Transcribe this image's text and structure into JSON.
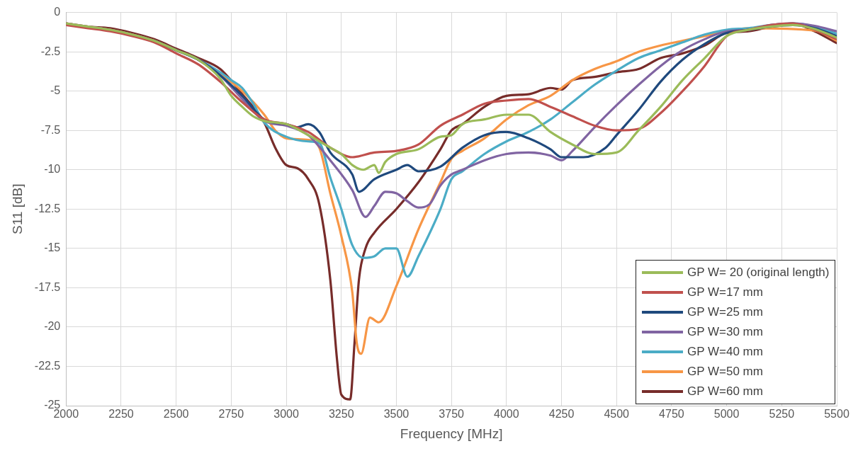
{
  "chart_data": {
    "type": "line",
    "xlabel": "Frequency [MHz]",
    "ylabel": "S11 [dB]",
    "xlim": [
      2000,
      5500
    ],
    "xticks": [
      2000,
      2250,
      2500,
      2750,
      3000,
      3250,
      3500,
      3750,
      4000,
      4250,
      4500,
      4750,
      5000,
      5250,
      5500
    ],
    "ylim": [
      -25,
      0
    ],
    "yticks": [
      -25,
      -22.5,
      -20,
      -17.5,
      -15,
      -12.5,
      -10,
      -7.5,
      -5,
      -2.5,
      0
    ],
    "grid": true,
    "legend": "bottom right",
    "marker": "none",
    "line_style": "solid",
    "series": [
      {
        "name": "GP W= 20 (original length)",
        "color": "#9bbb59",
        "x": [
          2000,
          2100,
          2200,
          2300,
          2400,
          2500,
          2600,
          2700,
          2750,
          2800,
          2850,
          2900,
          3000,
          3100,
          3200,
          3250,
          3300,
          3350,
          3400,
          3420,
          3450,
          3500,
          3600,
          3700,
          3750,
          3800,
          3900,
          4000,
          4100,
          4200,
          4300,
          4400,
          4500,
          4600,
          4700,
          4800,
          4900,
          5000,
          5100,
          5200,
          5300,
          5400,
          5500
        ],
        "values": [
          -0.7,
          -0.9,
          -1.1,
          -1.4,
          -1.8,
          -2.4,
          -3.0,
          -4.2,
          -5.3,
          -6.0,
          -6.6,
          -6.9,
          -7.1,
          -7.8,
          -8.6,
          -9.0,
          -9.7,
          -10.0,
          -9.7,
          -10.2,
          -9.5,
          -9.0,
          -8.7,
          -7.9,
          -7.8,
          -7.1,
          -6.8,
          -6.5,
          -6.5,
          -7.6,
          -8.4,
          -9.0,
          -8.9,
          -7.5,
          -6.0,
          -4.3,
          -2.9,
          -1.5,
          -1.1,
          -0.9,
          -0.8,
          -1.05,
          -1.6
        ]
      },
      {
        "name": "GP W=17 mm",
        "color": "#c0504d",
        "x": [
          2000,
          2100,
          2200,
          2300,
          2400,
          2500,
          2600,
          2700,
          2800,
          2900,
          3000,
          3100,
          3200,
          3300,
          3400,
          3500,
          3600,
          3700,
          3800,
          3900,
          4000,
          4100,
          4200,
          4300,
          4400,
          4500,
          4600,
          4700,
          4800,
          4900,
          5000,
          5100,
          5200,
          5300,
          5400,
          5500
        ],
        "values": [
          -0.8,
          -1.0,
          -1.2,
          -1.5,
          -1.9,
          -2.6,
          -3.3,
          -4.4,
          -5.7,
          -6.8,
          -7.1,
          -7.6,
          -8.6,
          -9.2,
          -8.9,
          -8.8,
          -8.4,
          -7.2,
          -6.5,
          -5.8,
          -5.6,
          -5.5,
          -6.0,
          -6.6,
          -7.2,
          -7.5,
          -7.4,
          -6.4,
          -5.0,
          -3.4,
          -1.5,
          -1.1,
          -0.8,
          -0.7,
          -1.1,
          -1.7
        ]
      },
      {
        "name": "GP W=25 mm",
        "color": "#1f497d",
        "x": [
          2400,
          2500,
          2600,
          2700,
          2800,
          2900,
          3000,
          3050,
          3100,
          3150,
          3200,
          3300,
          3330,
          3400,
          3500,
          3550,
          3600,
          3700,
          3800,
          3900,
          4000,
          4100,
          4200,
          4250,
          4350,
          4450,
          4500,
          4600,
          4700,
          4800,
          4900,
          5000,
          5100,
          5200,
          5300,
          5400,
          5500
        ],
        "values": [
          -1.8,
          -2.4,
          -3.0,
          -4.0,
          -5.3,
          -6.8,
          -7.1,
          -7.3,
          -7.1,
          -7.6,
          -8.9,
          -10.3,
          -11.4,
          -10.6,
          -10.0,
          -9.7,
          -10.1,
          -9.8,
          -8.6,
          -7.8,
          -7.6,
          -8.0,
          -8.7,
          -9.2,
          -9.2,
          -8.6,
          -7.8,
          -6.2,
          -4.4,
          -3.0,
          -2.0,
          -1.3,
          -1.1,
          -0.9,
          -0.8,
          -1.0,
          -1.5
        ]
      },
      {
        "name": "GP W=30 mm",
        "color": "#8064a2",
        "x": [
          2000,
          2100,
          2200,
          2300,
          2400,
          2500,
          2600,
          2700,
          2800,
          2900,
          3000,
          3100,
          3200,
          3300,
          3360,
          3400,
          3450,
          3500,
          3550,
          3600,
          3650,
          3700,
          3750,
          3800,
          3900,
          4000,
          4100,
          4200,
          4250,
          4300,
          4400,
          4500,
          4600,
          4700,
          4800,
          4900,
          5000,
          5100,
          5200,
          5300,
          5400,
          5500
        ],
        "values": [
          -0.7,
          -0.9,
          -1.1,
          -1.4,
          -1.8,
          -2.4,
          -3.0,
          -4.0,
          -5.5,
          -6.9,
          -7.2,
          -7.8,
          -9.4,
          -11.3,
          -13.0,
          -12.3,
          -11.4,
          -11.5,
          -12.0,
          -12.4,
          -12.2,
          -11.0,
          -10.3,
          -10.0,
          -9.4,
          -9.0,
          -8.9,
          -9.1,
          -9.4,
          -8.8,
          -7.3,
          -5.9,
          -4.6,
          -3.4,
          -2.4,
          -1.7,
          -1.2,
          -1.1,
          -0.8,
          -0.7,
          -0.85,
          -1.2
        ]
      },
      {
        "name": "GP W=40 mm",
        "color": "#4bacc6",
        "x": [
          2400,
          2500,
          2600,
          2700,
          2750,
          2800,
          2850,
          2900,
          3000,
          3100,
          3150,
          3200,
          3250,
          3300,
          3350,
          3400,
          3450,
          3500,
          3550,
          3600,
          3700,
          3750,
          3800,
          3900,
          4000,
          4100,
          4200,
          4300,
          4400,
          4500,
          4600,
          4700,
          4800,
          4900,
          5000,
          5100,
          5200,
          5300,
          5400,
          5500
        ],
        "values": [
          -1.8,
          -2.4,
          -3.0,
          -3.8,
          -4.3,
          -4.8,
          -5.8,
          -7.0,
          -7.9,
          -8.2,
          -8.3,
          -10.5,
          -12.5,
          -14.8,
          -15.6,
          -15.5,
          -15.0,
          -15.0,
          -16.8,
          -15.5,
          -12.5,
          -10.6,
          -10.1,
          -9.0,
          -8.2,
          -7.6,
          -6.8,
          -5.7,
          -4.6,
          -3.7,
          -2.9,
          -2.4,
          -1.9,
          -1.4,
          -1.1,
          -1.0,
          -0.8,
          -0.7,
          -0.9,
          -1.35
        ]
      },
      {
        "name": "GP W=50 mm",
        "color": "#f79646",
        "x": [
          2000,
          2100,
          2200,
          2300,
          2400,
          2500,
          2600,
          2700,
          2800,
          2900,
          2950,
          3000,
          3100,
          3150,
          3200,
          3250,
          3300,
          3320,
          3340,
          3380,
          3420,
          3500,
          3600,
          3700,
          3750,
          3800,
          3900,
          4000,
          4100,
          4200,
          4300,
          4400,
          4500,
          4600,
          4700,
          4800,
          4900,
          5000,
          5100,
          5400,
          5500
        ],
        "values": [
          -0.7,
          -0.9,
          -1.1,
          -1.4,
          -1.8,
          -2.4,
          -3.0,
          -3.9,
          -5.0,
          -6.5,
          -7.5,
          -8.0,
          -8.1,
          -8.6,
          -11.5,
          -14.2,
          -17.8,
          -21.0,
          -21.7,
          -19.4,
          -19.7,
          -17.4,
          -13.8,
          -10.8,
          -9.3,
          -8.8,
          -8.0,
          -6.8,
          -5.9,
          -5.3,
          -4.3,
          -3.6,
          -3.1,
          -2.5,
          -2.1,
          -1.8,
          -1.5,
          -1.2,
          -1.0,
          -1.15,
          -1.8
        ]
      },
      {
        "name": "GP W=60 mm",
        "color": "#772c2a",
        "x": [
          2000,
          2100,
          2200,
          2300,
          2400,
          2500,
          2600,
          2700,
          2800,
          2900,
          2950,
          3000,
          3050,
          3100,
          3150,
          3200,
          3230,
          3250,
          3290,
          3310,
          3330,
          3360,
          3400,
          3500,
          3600,
          3700,
          3750,
          3800,
          3900,
          4000,
          4100,
          4200,
          4250,
          4300,
          4400,
          4500,
          4600,
          4700,
          4800,
          4900,
          5000,
          5100,
          5200,
          5300,
          5400,
          5500
        ],
        "values": [
          -0.7,
          -0.9,
          -1.0,
          -1.3,
          -1.7,
          -2.3,
          -2.9,
          -3.6,
          -5.2,
          -7.0,
          -8.6,
          -9.7,
          -9.9,
          -10.6,
          -12.2,
          -17.0,
          -22.0,
          -24.3,
          -24.6,
          -21.0,
          -17.0,
          -15.0,
          -14.0,
          -12.5,
          -10.8,
          -8.7,
          -7.5,
          -7.1,
          -6.0,
          -5.3,
          -5.2,
          -4.8,
          -4.9,
          -4.3,
          -4.1,
          -3.8,
          -3.6,
          -2.9,
          -2.6,
          -2.1,
          -1.3,
          -1.2,
          -0.9,
          -0.7,
          -1.2,
          -1.95
        ]
      }
    ]
  }
}
